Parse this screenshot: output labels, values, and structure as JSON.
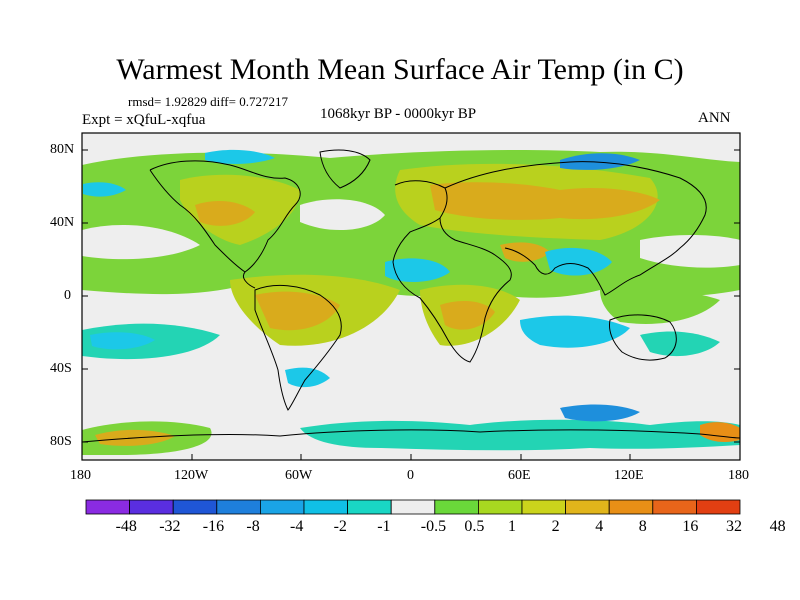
{
  "title": "Warmest Month Mean Surface Air Temp (in C)",
  "stats": "rmsd= 1.92829 diff= 0.727217",
  "experiment": "Expt = xQfuL-xqfua",
  "period": "1068kyr BP - 0000kyr BP",
  "season": "ANN",
  "y_ticks": [
    "80N",
    "40N",
    "0",
    "40S",
    "80S"
  ],
  "x_ticks": [
    "180",
    "120W",
    "60W",
    "0",
    "60E",
    "120E",
    "180"
  ],
  "colorbar": {
    "colors": [
      "#8a2be2",
      "#5a2ee0",
      "#1f56d6",
      "#1e7fdc",
      "#1aa4e6",
      "#10c0e6",
      "#19d6c4",
      "#eeeeee",
      "#6ad83a",
      "#a8d820",
      "#cbd41c",
      "#e1b51b",
      "#e88f16",
      "#e8651a",
      "#e23f12"
    ],
    "labels": [
      "-48",
      "-32",
      "-16",
      "-8",
      "-4",
      "-2",
      "-1",
      "-0.5",
      "0.5",
      "1",
      "2",
      "4",
      "8",
      "16",
      "32",
      "48"
    ]
  },
  "palette": {
    "neutral": "#eeeeee",
    "green": "#7cd43a",
    "yellow": "#b9d11e",
    "orange": "#d9ab1c",
    "cyan": "#1cc8e8",
    "teal": "#23d4b4",
    "blue": "#1e8fdc"
  }
}
